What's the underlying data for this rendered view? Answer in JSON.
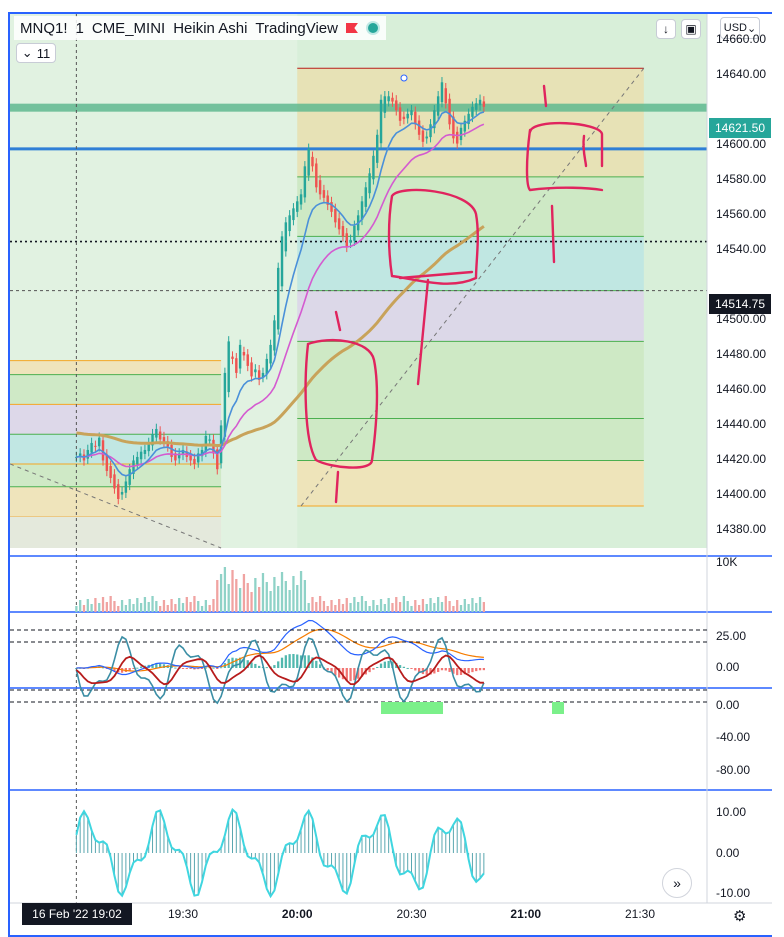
{
  "legend": {
    "symbol": "MNQ1!",
    "interval": "1",
    "exchange": "CME_MINI",
    "style": "Heikin Ashi",
    "source": "TradingView"
  },
  "collapse_label": "11",
  "currency": "USD",
  "date_badge": "16 Feb '22  19:02",
  "last_price_tag": "14621.50",
  "crosshair_price_tag": "14514.75",
  "colors": {
    "up": "#26a69a",
    "down": "#ef5350",
    "ema_fast": "#4a90d9",
    "ema_mid": "#d45bd0",
    "ema_slow": "#c8a35a",
    "panel_rsi": "#a8acb2",
    "accent": "#2962ff"
  },
  "chart_data": [
    {
      "type": "candlestick",
      "name": "price",
      "y_ticks": [
        "14660.00",
        "14640.00",
        "14620.00",
        "14600.00",
        "14580.00",
        "14560.00",
        "14540.00",
        "14520.00",
        "14500.00",
        "14480.00",
        "14460.00",
        "14440.00",
        "14420.00",
        "14400.00",
        "14380.00"
      ],
      "ylim": [
        14370,
        14675
      ],
      "x_ticks": [
        "19:30",
        "20:00",
        "20:30",
        "21:00",
        "21:30"
      ],
      "start_time": "19:02",
      "bar_minutes": 1,
      "close_series": [
        14422,
        14424,
        14420,
        14426,
        14430,
        14428,
        14433,
        14420,
        14414,
        14410,
        14404,
        14398,
        14402,
        14408,
        14415,
        14420,
        14422,
        14425,
        14426,
        14430,
        14435,
        14438,
        14432,
        14430,
        14428,
        14422,
        14420,
        14424,
        14426,
        14422,
        14420,
        14418,
        14424,
        14426,
        14434,
        14432,
        14424,
        14415,
        14440,
        14470,
        14488,
        14478,
        14470,
        14486,
        14480,
        14474,
        14468,
        14472,
        14466,
        14470,
        14478,
        14486,
        14500,
        14530,
        14548,
        14556,
        14560,
        14564,
        14568,
        14572,
        14588,
        14598,
        14588,
        14576,
        14572,
        14570,
        14566,
        14562,
        14556,
        14552,
        14548,
        14542,
        14546,
        14554,
        14560,
        14568,
        14576,
        14584,
        14594,
        14606,
        14626,
        14628,
        14628,
        14625,
        14620,
        14614,
        14615,
        14618,
        14620,
        14612,
        14606,
        14602,
        14605,
        14612,
        14620,
        14628,
        14636,
        14624,
        14612,
        14604,
        14601,
        14610,
        14614,
        14618,
        14622,
        14624,
        14626,
        14622
      ],
      "boxes": [
        {
          "from": "20:00",
          "to": "21:31",
          "levels": [
            14394,
            14420,
            14444,
            14488,
            14517,
            14548,
            14582,
            14644
          ]
        },
        {
          "from": "19:02",
          "to": "19:40",
          "levels": [
            14388,
            14405,
            14418,
            14435,
            14452,
            14469,
            14477
          ]
        }
      ],
      "horizontal_lines": [
        14621.5,
        14598,
        14545,
        14517
      ]
    },
    {
      "type": "bar",
      "name": "volume",
      "y_ticks": [
        "10K"
      ]
    },
    {
      "type": "line",
      "name": "macd",
      "y_ticks": [
        "25.00",
        "0.00"
      ],
      "ylim": [
        -12,
        32
      ]
    },
    {
      "type": "line",
      "name": "oscillator",
      "y_ticks": [
        "0.00",
        "-40.00",
        "-80.00"
      ],
      "ylim": [
        -100,
        0
      ],
      "bands": [
        -5,
        -20,
        -80,
        -95
      ]
    },
    {
      "type": "bar",
      "name": "momentum",
      "y_ticks": [
        "10.00",
        "0.00",
        "-10.00"
      ],
      "ylim": [
        -12,
        12
      ]
    }
  ]
}
